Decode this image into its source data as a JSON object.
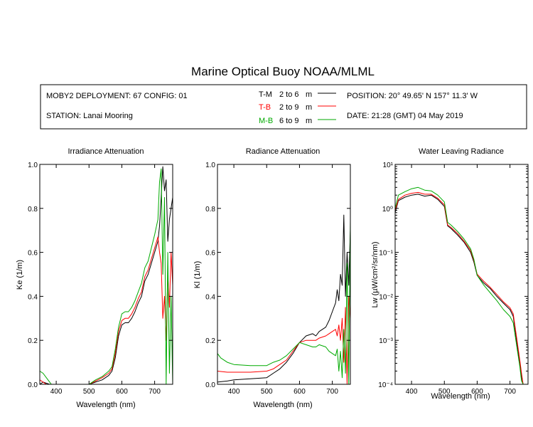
{
  "figure": {
    "title": "Marine Optical Buoy NOAA/MLML",
    "deployment": "MOBY2 DEPLOYMENT: 67 CONFIG: 01",
    "station": "STATION: Lanai Mooring",
    "position": "POSITION: 20° 49.65' N   157° 11.3' W",
    "date": "DATE: 21:28 (GMT) 04 May 2019",
    "legend": [
      {
        "code": "T-M",
        "range": "2 to 6",
        "unit": "m",
        "color": "#000000"
      },
      {
        "code": "T-B",
        "range": "2 to 9",
        "unit": "m",
        "color": "#ff0000"
      },
      {
        "code": "M-B",
        "range": "6 to 9",
        "unit": "m",
        "color": "#00aa00"
      }
    ]
  },
  "chart_data": [
    {
      "type": "line",
      "title": "Irradiance Attenuation",
      "xlabel": "Wavelength (nm)",
      "ylabel": "Ke  (1/m)",
      "xlim": [
        350,
        755
      ],
      "ylim": [
        0,
        1.0
      ],
      "xticks": [
        "400",
        "500",
        "600",
        "700"
      ],
      "yticks": [
        "0.0",
        "0.2",
        "0.4",
        "0.6",
        "0.8",
        "1.0"
      ],
      "grid": false,
      "series": [
        {
          "name": "T-M",
          "color": "#000000",
          "x": [
            350,
            360,
            370,
            380,
            385,
            500,
            520,
            540,
            560,
            570,
            580,
            590,
            600,
            610,
            620,
            630,
            640,
            650,
            660,
            670,
            680,
            690,
            700,
            710,
            715,
            720,
            725,
            730,
            735,
            740,
            745,
            750,
            755
          ],
          "y": [
            0.0,
            0.01,
            0.005,
            0.0,
            0.0,
            0.0,
            0.01,
            0.02,
            0.04,
            0.06,
            0.12,
            0.22,
            0.27,
            0.28,
            0.28,
            0.3,
            0.33,
            0.37,
            0.4,
            0.47,
            0.5,
            0.55,
            0.6,
            0.65,
            0.72,
            0.85,
            0.99,
            0.88,
            0.93,
            0.65,
            0.75,
            0.8,
            0.85
          ]
        },
        {
          "name": "T-B",
          "color": "#ff0000",
          "x": [
            350,
            360,
            370,
            380,
            385,
            500,
            520,
            540,
            560,
            570,
            580,
            590,
            600,
            610,
            620,
            630,
            640,
            650,
            660,
            670,
            680,
            690,
            700,
            710,
            715,
            720,
            725,
            730,
            735,
            740,
            745,
            750,
            755
          ],
          "y": [
            0.02,
            0.01,
            0.0,
            0.0,
            0.0,
            0.0,
            0.015,
            0.03,
            0.05,
            0.07,
            0.14,
            0.24,
            0.29,
            0.3,
            0.3,
            0.32,
            0.35,
            0.39,
            0.42,
            0.49,
            0.52,
            0.57,
            0.62,
            0.67,
            0.6,
            0.55,
            0.3,
            0.4,
            0.2,
            0.5,
            0.35,
            0.6,
            0.45
          ]
        },
        {
          "name": "M-B",
          "color": "#00aa00",
          "x": [
            350,
            360,
            370,
            380,
            385,
            500,
            520,
            540,
            560,
            570,
            580,
            590,
            600,
            610,
            620,
            630,
            640,
            650,
            660,
            670,
            680,
            690,
            700,
            710,
            715,
            720,
            725,
            730,
            735,
            740,
            745,
            750,
            755
          ],
          "y": [
            0.06,
            0.05,
            0.03,
            0.01,
            0.0,
            0.0,
            0.02,
            0.035,
            0.06,
            0.08,
            0.16,
            0.26,
            0.32,
            0.33,
            0.33,
            0.35,
            0.38,
            0.42,
            0.46,
            0.53,
            0.56,
            0.62,
            0.68,
            0.75,
            0.92,
            0.98,
            0.5,
            0.85,
            0.0,
            0.6,
            0.05,
            0.4,
            0.0
          ]
        }
      ]
    },
    {
      "type": "line",
      "title": "Radiance Attenuation",
      "xlabel": "Wavelength (nm)",
      "ylabel": "Kl  (1/m)",
      "xlim": [
        350,
        755
      ],
      "ylim": [
        0,
        1.0
      ],
      "xticks": [
        "400",
        "500",
        "600",
        "700"
      ],
      "yticks": [
        "0.0",
        "0.2",
        "0.4",
        "0.6",
        "0.8",
        "1.0"
      ],
      "grid": false,
      "series": [
        {
          "name": "T-M",
          "color": "#000000",
          "x": [
            350,
            380,
            400,
            450,
            500,
            520,
            540,
            560,
            580,
            600,
            620,
            640,
            650,
            660,
            680,
            690,
            700,
            710,
            715,
            720,
            725,
            730,
            735,
            740,
            745,
            750,
            755
          ],
          "y": [
            0.01,
            0.015,
            0.02,
            0.025,
            0.03,
            0.05,
            0.07,
            0.1,
            0.14,
            0.19,
            0.22,
            0.23,
            0.22,
            0.24,
            0.26,
            0.29,
            0.33,
            0.37,
            0.43,
            0.38,
            0.5,
            0.45,
            0.77,
            0.4,
            0.6,
            0.45,
            0.7
          ]
        },
        {
          "name": "T-B",
          "color": "#ff0000",
          "x": [
            350,
            380,
            400,
            450,
            500,
            520,
            540,
            560,
            580,
            600,
            620,
            640,
            650,
            660,
            680,
            690,
            700,
            710,
            715,
            720,
            725,
            730,
            735,
            740,
            745,
            750,
            755
          ],
          "y": [
            0.06,
            0.055,
            0.055,
            0.055,
            0.06,
            0.07,
            0.09,
            0.11,
            0.15,
            0.19,
            0.2,
            0.2,
            0.2,
            0.21,
            0.22,
            0.23,
            0.24,
            0.25,
            0.22,
            0.27,
            0.2,
            0.3,
            0.1,
            0.35,
            0.0,
            0.4,
            0.3
          ]
        },
        {
          "name": "M-B",
          "color": "#00aa00",
          "x": [
            350,
            360,
            380,
            400,
            450,
            500,
            520,
            540,
            560,
            580,
            600,
            620,
            640,
            650,
            660,
            680,
            690,
            700,
            710,
            715,
            720,
            725,
            730,
            735,
            740,
            745,
            750,
            755
          ],
          "y": [
            0.14,
            0.12,
            0.1,
            0.09,
            0.085,
            0.085,
            0.1,
            0.11,
            0.13,
            0.16,
            0.19,
            0.18,
            0.17,
            0.17,
            0.18,
            0.17,
            0.15,
            0.14,
            0.13,
            0.16,
            0.06,
            0.15,
            0.03,
            0.25,
            0.05,
            0.55,
            0.0,
            0.75
          ]
        }
      ]
    },
    {
      "type": "line",
      "title": "Water Leaving Radiance",
      "xlabel": "Wavelength (nm)",
      "ylabel": "Lw  (µW/cm²/sr/nm)",
      "xlim": [
        350,
        755
      ],
      "ylim": [
        0.0001,
        10
      ],
      "yscale": "log",
      "xticks": [
        "400",
        "500",
        "600",
        "700"
      ],
      "yticks": [
        "10⁻⁴",
        "10⁻³",
        "10⁻²",
        "10⁻¹",
        "10⁰",
        "10¹"
      ],
      "grid": false,
      "series": [
        {
          "name": "T-M",
          "color": "#000000",
          "x": [
            350,
            360,
            380,
            400,
            420,
            440,
            460,
            480,
            500,
            510,
            520,
            540,
            560,
            580,
            590,
            600,
            620,
            640,
            660,
            680,
            700,
            710,
            720,
            730,
            735,
            740
          ],
          "y": [
            0.8,
            1.5,
            1.8,
            2.0,
            2.1,
            1.9,
            2.0,
            1.6,
            1.1,
            0.4,
            0.35,
            0.25,
            0.17,
            0.1,
            0.06,
            0.03,
            0.02,
            0.015,
            0.01,
            0.007,
            0.005,
            0.0035,
            0.001,
            0.0003,
            0.00015,
            0.0001
          ]
        },
        {
          "name": "T-B",
          "color": "#ff0000",
          "x": [
            350,
            360,
            380,
            400,
            420,
            440,
            460,
            480,
            500,
            510,
            520,
            540,
            560,
            580,
            590,
            600,
            620,
            640,
            660,
            680,
            700,
            710,
            720,
            730,
            735,
            740
          ],
          "y": [
            0.9,
            1.6,
            2.0,
            2.2,
            2.3,
            2.1,
            2.1,
            1.7,
            1.2,
            0.42,
            0.37,
            0.27,
            0.18,
            0.11,
            0.065,
            0.032,
            0.022,
            0.016,
            0.011,
            0.0075,
            0.0055,
            0.004,
            0.0012,
            0.00035,
            0.00018,
            0.0001
          ]
        },
        {
          "name": "M-B",
          "color": "#00aa00",
          "x": [
            350,
            360,
            380,
            400,
            420,
            440,
            460,
            480,
            500,
            510,
            520,
            540,
            560,
            580,
            590,
            600,
            620,
            640,
            660,
            680,
            700,
            710,
            720,
            730,
            735,
            740
          ],
          "y": [
            1.0,
            2.0,
            2.4,
            2.8,
            3.0,
            2.6,
            2.5,
            2.0,
            1.4,
            0.48,
            0.42,
            0.3,
            0.2,
            0.12,
            0.07,
            0.03,
            0.018,
            0.012,
            0.008,
            0.005,
            0.0035,
            0.0025,
            0.0008,
            0.00025,
            0.00012,
            0.0001
          ]
        }
      ]
    }
  ]
}
